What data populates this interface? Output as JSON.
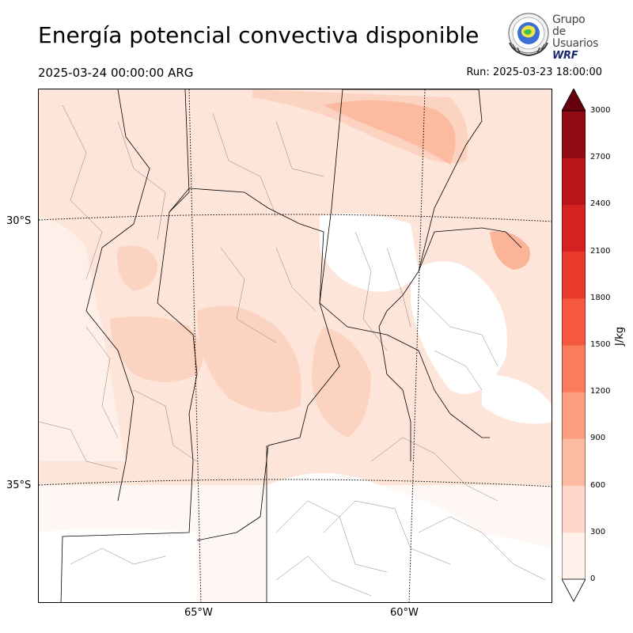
{
  "header": {
    "title": "Energía potencial convectiva disponible",
    "valid_time": "2025-03-24 00:00:00 ARG",
    "run_time": "Run: 2025-03-23 18:00:00"
  },
  "logo": {
    "line1": "Grupo de",
    "line2": "Usuarios",
    "line3": "WRF",
    "icon": "globe-seal-icon"
  },
  "map": {
    "lat_labels": [
      "30°S",
      "35°S"
    ],
    "lon_labels": [
      "65°W",
      "60°W"
    ],
    "field": "CAPE",
    "colors": {
      "bg": "#ffffff",
      "level1": "#feebe2",
      "level2": "#fcd3c1",
      "level3": "#fcb499",
      "border": "#000000",
      "dept": "#555555"
    }
  },
  "colorbar": {
    "unit": "J/kg",
    "ticks": [
      "0",
      "300",
      "600",
      "900",
      "1200",
      "1500",
      "1800",
      "2100",
      "2400",
      "2700",
      "3000"
    ],
    "colors": [
      "#fff0ea",
      "#fdd8c8",
      "#fcbba1",
      "#fc9f81",
      "#fb7c5c",
      "#f6583e",
      "#ea3a2d",
      "#d52221",
      "#b81419",
      "#8f0a13"
    ],
    "over_color": "#67000d",
    "under_color": "#ffffff"
  }
}
